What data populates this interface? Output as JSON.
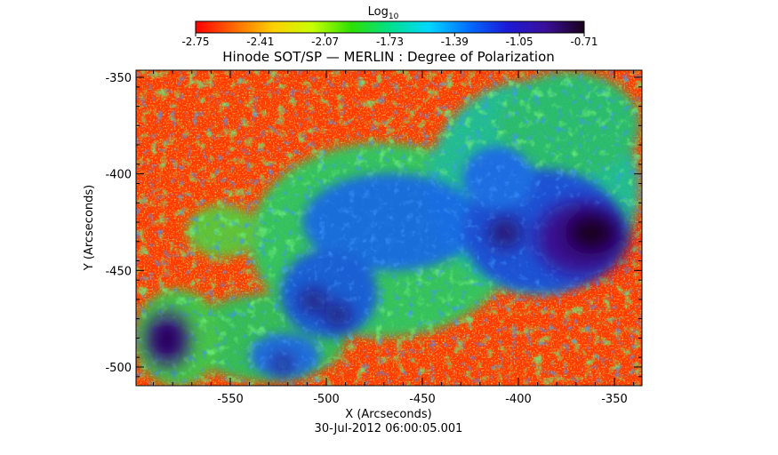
{
  "colorbar": {
    "label": "Log",
    "label_subscript": "10",
    "ticks": [
      "-2.75",
      "-2.41",
      "-2.07",
      "-1.73",
      "-1.39",
      "-1.05",
      "-0.71"
    ],
    "colormap": [
      "#ff0000",
      "#ff6a00",
      "#ffd000",
      "#c8ff00",
      "#2ee000",
      "#00e08c",
      "#00d8ff",
      "#0070ff",
      "#1b1bd8",
      "#3a0f9a",
      "#1a001a"
    ]
  },
  "title": "Hinode SOT/SP — MERLIN : Degree of Polarization",
  "x_axis": {
    "label": "X (Arcseconds)",
    "ticks": [
      "-550",
      "-500",
      "-450",
      "-400",
      "-350"
    ]
  },
  "y_axis": {
    "label": "Y (Arcseconds)",
    "ticks": [
      "-350",
      "-400",
      "-450",
      "-500"
    ]
  },
  "timestamp": "30-Jul-2012 06:00:05.001"
}
